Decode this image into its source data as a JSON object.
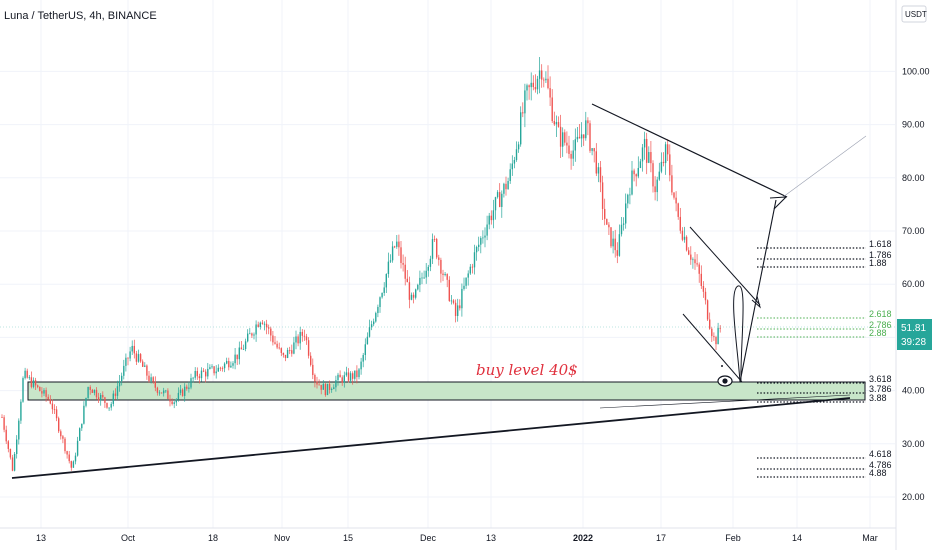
{
  "header": {
    "title": "Luna / TetherUS, 4h, BINANCE",
    "currency_button": "USDT"
  },
  "price_badge": {
    "price": "51.81",
    "countdown": "39:28",
    "color": "#26a69a"
  },
  "annotation": {
    "text": "buy level 40$",
    "color": "#e0313e"
  },
  "colors": {
    "up": "#26a69a",
    "down": "#ef5350",
    "zone_fill": "#c8e6c9",
    "fib_green": "#4caf50",
    "line": "#131722"
  },
  "chart_data": {
    "type": "candlestick",
    "y_axis": {
      "ticks": [
        "100.00",
        "90.00",
        "80.00",
        "70.00",
        "60.00",
        "50.00",
        "40.00",
        "30.00",
        "20.00"
      ],
      "range": [
        12,
        106
      ]
    },
    "x_axis": {
      "ticks": [
        "13",
        "Oct",
        "18",
        "Nov",
        "15",
        "Dec",
        "13",
        "2022",
        "17",
        "Feb",
        "14",
        "Mar"
      ],
      "bold_ticks": [
        "2022"
      ]
    },
    "price_path": [
      [
        0,
        35
      ],
      [
        0.02,
        25
      ],
      [
        0.04,
        43
      ],
      [
        0.09,
        38
      ],
      [
        0.13,
        25
      ],
      [
        0.16,
        41
      ],
      [
        0.2,
        37
      ],
      [
        0.24,
        48
      ],
      [
        0.28,
        41
      ],
      [
        0.32,
        38
      ],
      [
        0.36,
        43
      ],
      [
        0.4,
        44
      ],
      [
        0.44,
        47
      ],
      [
        0.48,
        54
      ],
      [
        0.52,
        46
      ],
      [
        0.56,
        51
      ],
      [
        0.58,
        42
      ],
      [
        0.6,
        40
      ],
      [
        0.62,
        42
      ],
      [
        0.66,
        43
      ],
      [
        0.68,
        51
      ],
      [
        0.7,
        58
      ],
      [
        0.73,
        68
      ],
      [
        0.76,
        56
      ],
      [
        0.8,
        68
      ],
      [
        0.84,
        54
      ],
      [
        0.87,
        64
      ],
      [
        0.9,
        72
      ],
      [
        0.94,
        80
      ],
      [
        0.97,
        95
      ],
      [
        1.0,
        101
      ],
      [
        1.03,
        88
      ],
      [
        1.06,
        85
      ],
      [
        1.08,
        90
      ],
      [
        1.1,
        83
      ],
      [
        1.12,
        70
      ],
      [
        1.14,
        66
      ],
      [
        1.16,
        78
      ],
      [
        1.19,
        86
      ],
      [
        1.21,
        78
      ],
      [
        1.23,
        85
      ],
      [
        1.25,
        73
      ],
      [
        1.27,
        67
      ],
      [
        1.29,
        62
      ],
      [
        1.31,
        53
      ],
      [
        1.32,
        49
      ],
      [
        1.33,
        51.8
      ]
    ],
    "support_zone": {
      "low": 38,
      "high": 41.5,
      "label": "buy level 40$"
    },
    "rising_trendline": {
      "from_price": 23,
      "to_price": 38.5
    },
    "fib_levels": [
      {
        "label": "1.618",
        "group": "upper"
      },
      {
        "label": "1.786",
        "group": "upper"
      },
      {
        "label": "1.88",
        "group": "upper"
      },
      {
        "label": "2.618",
        "group": "middle"
      },
      {
        "label": "2.786",
        "group": "middle"
      },
      {
        "label": "2.88",
        "group": "middle"
      },
      {
        "label": "3.618",
        "group": "lower"
      },
      {
        "label": "3.786",
        "group": "lower"
      },
      {
        "label": "3.88",
        "group": "lower"
      },
      {
        "label": "4.618",
        "group": "bottom"
      },
      {
        "label": "4.786",
        "group": "bottom"
      },
      {
        "label": "4.88",
        "group": "bottom"
      }
    ],
    "last_price": 51.81
  }
}
